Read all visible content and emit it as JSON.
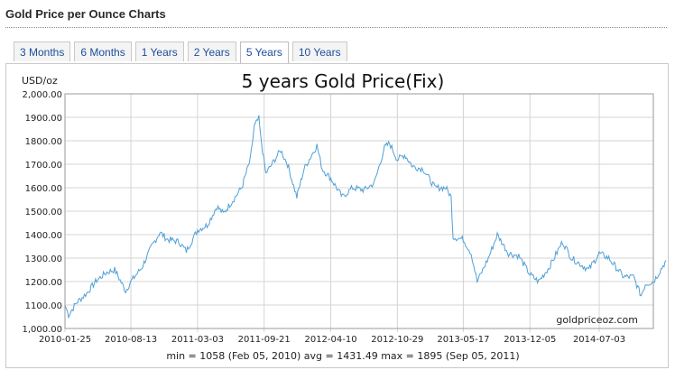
{
  "header": {
    "title": "Gold Price per Ounce Charts"
  },
  "tabs": [
    {
      "label": "3 Months",
      "active": false
    },
    {
      "label": "6 Months",
      "active": false
    },
    {
      "label": "1 Years",
      "active": false
    },
    {
      "label": "2 Years",
      "active": false
    },
    {
      "label": "5 Years",
      "active": true
    },
    {
      "label": "10 Years",
      "active": false
    }
  ],
  "chart_data": {
    "type": "line",
    "title": "5 years Gold Price(Fix)",
    "ylabel": "USD/oz",
    "xlabel": "",
    "watermark": "goldpriceoz.com",
    "ylim": [
      1000,
      2000
    ],
    "yticks": [
      "1,000.00",
      "1100.00",
      "1200.00",
      "1300.00",
      "1400.00",
      "1500.00",
      "1600.00",
      "1700.00",
      "1800.00",
      "1900.00",
      "2,000.00"
    ],
    "xticks": [
      "2010-01-25",
      "2010-08-13",
      "2011-03-03",
      "2011-09-21",
      "2012-04-10",
      "2012-10-29",
      "2013-05-17",
      "2013-12-05",
      "2014-07-03"
    ],
    "grid": true,
    "line_color": "#4f9fd6",
    "summary": "min = 1058 (Feb 05, 2010)  avg = 1431.49  max = 1895 (Sep 05, 2011)",
    "series": [
      {
        "x": [
          "2010-01-25",
          "2010-02-05",
          "2010-03-01",
          "2010-04-01",
          "2010-05-01",
          "2010-06-01",
          "2010-06-25",
          "2010-07-28",
          "2010-08-13",
          "2010-09-15",
          "2010-10-15",
          "2010-11-09",
          "2010-12-01",
          "2011-01-05",
          "2011-01-28",
          "2011-03-03",
          "2011-04-01",
          "2011-05-01",
          "2011-05-20",
          "2011-06-15",
          "2011-07-15",
          "2011-08-10",
          "2011-08-22",
          "2011-09-05",
          "2011-09-10",
          "2011-09-26",
          "2011-10-10",
          "2011-11-10",
          "2011-12-01",
          "2011-12-29",
          "2012-01-20",
          "2012-02-28",
          "2012-03-15",
          "2012-04-10",
          "2012-05-15",
          "2012-06-15",
          "2012-07-20",
          "2012-08-20",
          "2012-09-20",
          "2012-10-05",
          "2012-10-29",
          "2012-11-20",
          "2012-12-15",
          "2013-01-15",
          "2013-02-20",
          "2013-03-25",
          "2013-04-10",
          "2013-04-16",
          "2013-05-17",
          "2013-06-10",
          "2013-06-28",
          "2013-08-01",
          "2013-08-28",
          "2013-10-01",
          "2013-11-01",
          "2013-12-05",
          "2013-12-31",
          "2014-02-01",
          "2014-03-14",
          "2014-04-10",
          "2014-06-01",
          "2014-07-03",
          "2014-08-01",
          "2014-09-15",
          "2014-10-15",
          "2014-11-07",
          "2014-11-20",
          "2014-12-15",
          "2015-01-22"
        ],
        "y": [
          1100,
          1058,
          1110,
          1150,
          1205,
          1240,
          1250,
          1160,
          1200,
          1260,
          1350,
          1410,
          1380,
          1370,
          1330,
          1420,
          1440,
          1520,
          1490,
          1540,
          1600,
          1720,
          1860,
          1895,
          1820,
          1660,
          1690,
          1760,
          1700,
          1560,
          1680,
          1780,
          1680,
          1640,
          1560,
          1600,
          1590,
          1620,
          1770,
          1790,
          1720,
          1740,
          1690,
          1680,
          1600,
          1600,
          1560,
          1390,
          1380,
          1320,
          1200,
          1300,
          1400,
          1320,
          1310,
          1230,
          1200,
          1260,
          1370,
          1300,
          1250,
          1320,
          1300,
          1220,
          1220,
          1140,
          1190,
          1200,
          1290
        ]
      }
    ]
  }
}
